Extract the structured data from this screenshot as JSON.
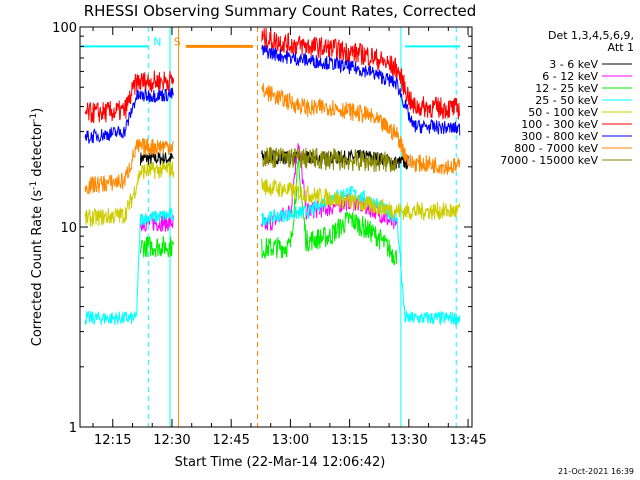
{
  "chart_data": {
    "type": "line",
    "title": "RHESSI Observing Summary Count Rates, Corrected",
    "xlabel": "Start Time (22-Mar-14 12:06:42)",
    "ylabel_parts": [
      "Corrected Count Rate (s",
      "-1",
      " detector",
      "-1",
      ")"
    ],
    "yscale": "log",
    "ylim": [
      1,
      100
    ],
    "xlim": [
      "12:06:42",
      "13:46:00"
    ],
    "x_ticks": [
      "12:15",
      "12:30",
      "12:45",
      "13:00",
      "13:15",
      "13:30",
      "13:45"
    ],
    "y_ticks": [
      "1",
      "10",
      "100"
    ],
    "legend_header": [
      "Det 1,3,4,5,6,9,",
      "Att 1"
    ],
    "legend_position": "top-right, outside plot",
    "series": [
      {
        "name": "3 - 6 keV",
        "color": "#000000",
        "points": [
          [
            "12:22",
            22
          ],
          [
            "12:30",
            22
          ],
          [
            "12:53",
            22.5
          ],
          [
            "13:05",
            22
          ],
          [
            "13:20",
            22.5
          ],
          [
            "13:27",
            21
          ],
          [
            "13:30",
            21
          ]
        ]
      },
      {
        "name": "6 - 12 keV",
        "color": "#ff00ff",
        "points": [
          [
            "12:22",
            10.5
          ],
          [
            "12:30",
            10.5
          ],
          [
            "12:53",
            10
          ],
          [
            "13:00",
            12
          ],
          [
            "13:02",
            27
          ],
          [
            "13:04",
            12
          ],
          [
            "13:10",
            12.5
          ],
          [
            "13:15",
            13.5
          ],
          [
            "13:22",
            12
          ],
          [
            "13:27",
            10
          ]
        ]
      },
      {
        "name": "12 - 25 keV",
        "color": "#00ee00",
        "points": [
          [
            "12:22",
            8
          ],
          [
            "12:30",
            8
          ],
          [
            "12:53",
            7.8
          ],
          [
            "13:00",
            8
          ],
          [
            "13:02",
            20
          ],
          [
            "13:04",
            8.5
          ],
          [
            "13:10",
            9
          ],
          [
            "13:15",
            11
          ],
          [
            "13:22",
            9
          ],
          [
            "13:27",
            7
          ]
        ]
      },
      {
        "name": "25 - 50 keV",
        "color": "#00ffff",
        "points": [
          [
            "12:08",
            3.5
          ],
          [
            "12:21",
            3.5
          ],
          [
            "12:22",
            11
          ],
          [
            "12:30",
            11.5
          ],
          [
            "12:53",
            11
          ],
          [
            "13:05",
            12
          ],
          [
            "13:10",
            14
          ],
          [
            "13:15",
            15
          ],
          [
            "13:22",
            13
          ],
          [
            "13:27",
            11
          ],
          [
            "13:29",
            3.5
          ],
          [
            "13:43",
            3.5
          ]
        ]
      },
      {
        "name": "50 - 100 keV",
        "color": "#cccc00",
        "points": [
          [
            "12:08",
            11
          ],
          [
            "12:18",
            11.5
          ],
          [
            "12:20",
            14
          ],
          [
            "12:22",
            19
          ],
          [
            "12:30",
            19.5
          ],
          [
            "13:28",
            12
          ],
          [
            "13:43",
            12
          ]
        ]
      },
      {
        "name": "100 - 300 keV",
        "color": "#ff0000",
        "points": [
          [
            "12:08",
            37
          ],
          [
            "12:18",
            38
          ],
          [
            "12:21",
            53
          ],
          [
            "12:30",
            54
          ],
          [
            "12:53",
            88
          ],
          [
            "13:00",
            82
          ],
          [
            "13:10",
            78
          ],
          [
            "13:20",
            72
          ],
          [
            "13:27",
            62
          ],
          [
            "13:31",
            40
          ],
          [
            "13:43",
            39
          ]
        ]
      },
      {
        "name": "300 - 800 keV",
        "color": "#0000ff",
        "points": [
          [
            "12:08",
            28
          ],
          [
            "12:18",
            30
          ],
          [
            "12:21",
            45
          ],
          [
            "12:30",
            46
          ],
          [
            "12:53",
            76
          ],
          [
            "13:00",
            70
          ],
          [
            "13:10",
            66
          ],
          [
            "13:20",
            60
          ],
          [
            "13:27",
            52
          ],
          [
            "13:31",
            32
          ],
          [
            "13:43",
            31
          ]
        ]
      },
      {
        "name": "800 - 7000 keV",
        "color": "#ff8800",
        "points": [
          [
            "12:08",
            16
          ],
          [
            "12:18",
            17
          ],
          [
            "12:21",
            25
          ],
          [
            "12:30",
            25.5
          ],
          [
            "12:53",
            48
          ],
          [
            "13:00",
            42
          ],
          [
            "13:05",
            39
          ],
          [
            "13:10",
            40
          ],
          [
            "13:20",
            36
          ],
          [
            "13:27",
            29
          ],
          [
            "13:30",
            21
          ],
          [
            "13:43",
            20
          ]
        ]
      },
      {
        "name": "7000 - 15000 keV",
        "color": "#888800",
        "points": [
          [
            "12:53",
            22.5
          ],
          [
            "13:27",
            21
          ]
        ]
      }
    ],
    "attenuator_bar": {
      "color": "#ff8800",
      "value": 80,
      "start": "12:33:30",
      "end": "12:50:30",
      "label": "S"
    },
    "night_bar": {
      "color": "#00ffff",
      "value": 80,
      "label": "N",
      "segments": [
        [
          "12:07",
          "12:24"
        ],
        [
          "13:29",
          "13:43"
        ]
      ]
    },
    "vertical_markers": [
      {
        "time": "12:24",
        "color": "#00ffff",
        "style": "dashed"
      },
      {
        "time": "12:29:30",
        "color": "#00ffff",
        "style": "solid"
      },
      {
        "time": "12:31:40",
        "color": "#ff8800",
        "style": "solid"
      },
      {
        "time": "12:51:40",
        "color": "#ff8800",
        "style": "dashed"
      },
      {
        "time": "13:28",
        "color": "#00ffff",
        "style": "solid"
      },
      {
        "time": "13:42",
        "color": "#00ffff",
        "style": "dashed"
      }
    ],
    "data_gaps": [
      [
        "12:30:30",
        "12:52:40"
      ]
    ]
  },
  "footer": {
    "timestamp": "21-Oct-2021 16:39"
  }
}
